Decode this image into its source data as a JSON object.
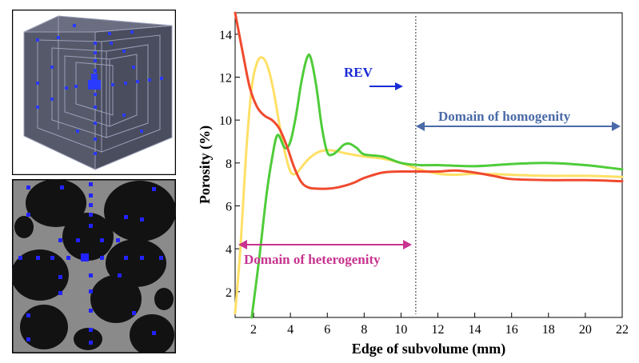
{
  "colors": {
    "green": "#4fcc3a",
    "yellow": "#ffe066",
    "red": "#f04a2e",
    "rev_blue": "#1a2bd6",
    "homogeneity_blue": "#4a6aa8",
    "heterogeneity_magenta": "#c8338f",
    "slice_blue": "#3a3aff"
  },
  "chart_data": {
    "type": "line",
    "xlabel": "Edge of subvolume (mm)",
    "ylabel": "Porosity (%)",
    "xlim": [
      1,
      22
    ],
    "ylim": [
      0.8,
      15
    ],
    "xticks": [
      2,
      4,
      6,
      8,
      10,
      12,
      14,
      16,
      18,
      20,
      22
    ],
    "yticks": [
      2,
      4,
      6,
      8,
      10,
      12,
      14
    ],
    "grid": false,
    "rev_line_x": 10.8,
    "series": [
      {
        "name": "green",
        "color": "#4fcc3a",
        "x": [
          1.9,
          2.3,
          2.7,
          3.0,
          3.3,
          3.7,
          4.0,
          4.3,
          4.6,
          4.9,
          5.1,
          5.4,
          5.7,
          6.0,
          6.3,
          6.6,
          6.9,
          7.2,
          7.6,
          8.0,
          9.0,
          10.0,
          11.0,
          12.0,
          14.0,
          16.0,
          18.0,
          20.0,
          22.0
        ],
        "values": [
          0.8,
          3.5,
          6.5,
          8.2,
          9.3,
          8.7,
          9.0,
          10.2,
          11.8,
          12.9,
          12.9,
          11.6,
          9.7,
          8.5,
          8.4,
          8.6,
          8.85,
          8.9,
          8.7,
          8.4,
          8.3,
          8.0,
          7.9,
          7.9,
          7.85,
          7.95,
          8.0,
          7.9,
          7.7
        ]
      },
      {
        "name": "yellow",
        "color": "#ffe066",
        "x": [
          1.0,
          1.3,
          1.6,
          1.9,
          2.2,
          2.5,
          2.8,
          3.1,
          3.4,
          3.7,
          4.0,
          4.3,
          4.6,
          5.0,
          5.5,
          6.0,
          6.5,
          7.0,
          8.0,
          9.0,
          10.0,
          11.0,
          12.0,
          13.0,
          14.0,
          16.0,
          18.0,
          20.0,
          22.0
        ],
        "values": [
          1.0,
          4.2,
          8.5,
          11.5,
          12.7,
          12.9,
          12.4,
          11.3,
          9.8,
          8.5,
          7.6,
          7.5,
          7.8,
          8.2,
          8.5,
          8.6,
          8.55,
          8.45,
          8.3,
          8.2,
          8.0,
          7.7,
          7.5,
          7.45,
          7.5,
          7.45,
          7.4,
          7.4,
          7.35
        ]
      },
      {
        "name": "red",
        "color": "#f04a2e",
        "x": [
          1.0,
          1.4,
          1.8,
          2.2,
          2.6,
          3.0,
          3.4,
          3.8,
          4.2,
          4.6,
          5.0,
          5.5,
          6.0,
          6.5,
          7.0,
          7.5,
          8.0,
          9.0,
          10.0,
          11.0,
          12.0,
          13.0,
          14.0,
          15.0,
          16.0,
          18.0,
          20.0,
          22.0
        ],
        "values": [
          15.0,
          13.2,
          11.5,
          10.6,
          10.2,
          10.0,
          9.6,
          8.8,
          7.8,
          7.1,
          6.85,
          6.8,
          6.8,
          6.85,
          6.95,
          7.1,
          7.3,
          7.55,
          7.6,
          7.6,
          7.6,
          7.65,
          7.55,
          7.4,
          7.25,
          7.2,
          7.2,
          7.15
        ]
      }
    ],
    "annotations": [
      {
        "text": "REV"
      },
      {
        "text": "Domain of homogenity"
      },
      {
        "text": "Domain of heterogenity"
      }
    ]
  }
}
